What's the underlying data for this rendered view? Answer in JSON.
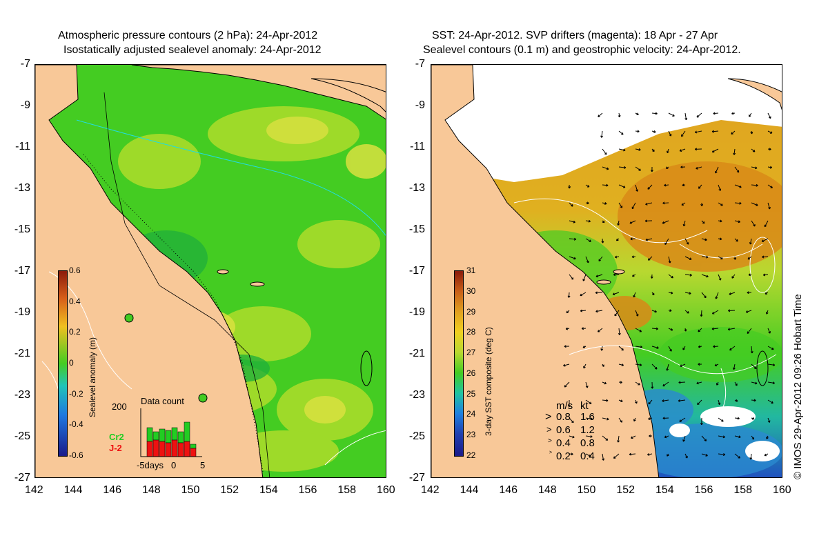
{
  "left_panel": {
    "title_line1": "Atmospheric pressure contours (2 hPa): 24-Apr-2012",
    "title_line2": "Isostatically adjusted sealevel anomaly: 24-Apr-2012",
    "colorbar": {
      "label": "Sealevel anomaly (m)",
      "ticks": [
        "0.6",
        "0.4",
        "0.2",
        "0",
        "-0.2",
        "-0.4",
        "-0.6"
      ]
    },
    "data_count": {
      "title": "Data count",
      "ymax_label": "200",
      "x_label": "-5days",
      "x_zero": "0",
      "x_five": "5",
      "series_labels": [
        "Cr2",
        "J-2"
      ],
      "series_colors": [
        "#22cc22",
        "#ee1111"
      ]
    }
  },
  "right_panel": {
    "title_line1": "SST: 24-Apr-2012. SVP drifters (magenta): 18 Apr - 27 Apr",
    "title_line2": "Sealevel contours (0.1 m) and geostrophic velocity: 24-Apr-2012.",
    "colorbar": {
      "label": "3-day SST composite (deg C)",
      "ticks": [
        "31",
        "30",
        "29",
        "28",
        "27",
        "26",
        "25",
        "24",
        "23",
        "22"
      ]
    },
    "velocity_legend": {
      "header_ms": "m/s",
      "header_kt": "kt",
      "rows": [
        {
          "ms": "0.8",
          "kt": "1.6"
        },
        {
          "ms": "0.6",
          "kt": "1.2"
        },
        {
          "ms": "0.4",
          "kt": "0.8"
        },
        {
          "ms": "0.2",
          "kt": "0.4"
        }
      ]
    }
  },
  "axes": {
    "y_ticks": [
      "-7",
      "-9",
      "-11",
      "-13",
      "-15",
      "-17",
      "-19",
      "-21",
      "-23",
      "-25",
      "-27"
    ],
    "x_ticks": [
      "142",
      "144",
      "146",
      "148",
      "150",
      "152",
      "154",
      "156",
      "158",
      "160"
    ]
  },
  "credit": "© IMOS 29-Apr-2012 09:26 Hobart Time",
  "colors": {
    "land": "#f8c898",
    "ocean_green": "#44cc22",
    "ocean_yellow": "#c8e030",
    "sst_orange": "#e09a20",
    "cloud": "#ffffff"
  }
}
